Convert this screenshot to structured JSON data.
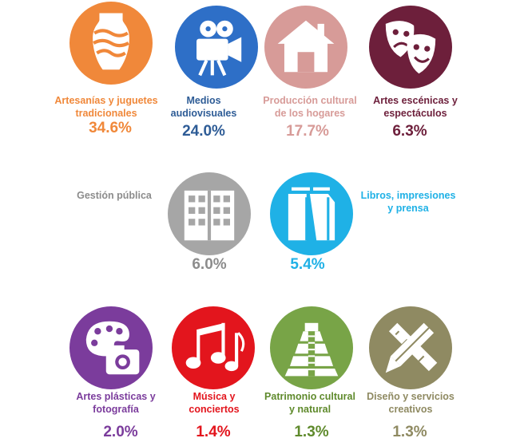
{
  "chart_data": {
    "type": "table",
    "items": [
      {
        "label1": "Artesanías y juguetes",
        "label2": "tradicionales",
        "value": "34.6%",
        "color": "#f0883a",
        "icon": "vase-icon"
      },
      {
        "label1": "Medios",
        "label2": "audiovisuales",
        "value": "24.0%",
        "color": "#2e6fc7",
        "icon": "movie-camera-icon"
      },
      {
        "label1": "Producción cultural",
        "label2": "de los hogares",
        "value": "17.7%",
        "color": "#d79b98",
        "icon": "house-icon"
      },
      {
        "label1": "Artes escénicas y",
        "label2": "espectáculos",
        "value": "6.3%",
        "color": "#6d1f3b",
        "icon": "theater-masks-icon"
      },
      {
        "label1": "Gestión pública",
        "label2": "",
        "value": "6.0%",
        "color": "#a6a6a6",
        "icon": "building-icon"
      },
      {
        "label1": "Libros, impresiones",
        "label2": "y prensa",
        "value": "5.4%",
        "color": "#1fb1e6",
        "icon": "books-icon"
      },
      {
        "label1": "Artes  plásticas y",
        "label2": "fotografía",
        "value": "2.0%",
        "color": "#7b3c9c",
        "icon": "palette-camera-icon"
      },
      {
        "label1": "Música y",
        "label2": "conciertos",
        "value": "1.4%",
        "color": "#e3151d",
        "icon": "music-notes-icon"
      },
      {
        "label1": "Patrimonio cultural",
        "label2": "y natural",
        "value": "1.3%",
        "color": "#78a447",
        "icon": "pyramid-icon"
      },
      {
        "label1": "Diseño y servicios",
        "label2": "creativos",
        "value": "1.3%",
        "color": "#8f8a62",
        "icon": "ruler-pencil-icon"
      }
    ]
  }
}
